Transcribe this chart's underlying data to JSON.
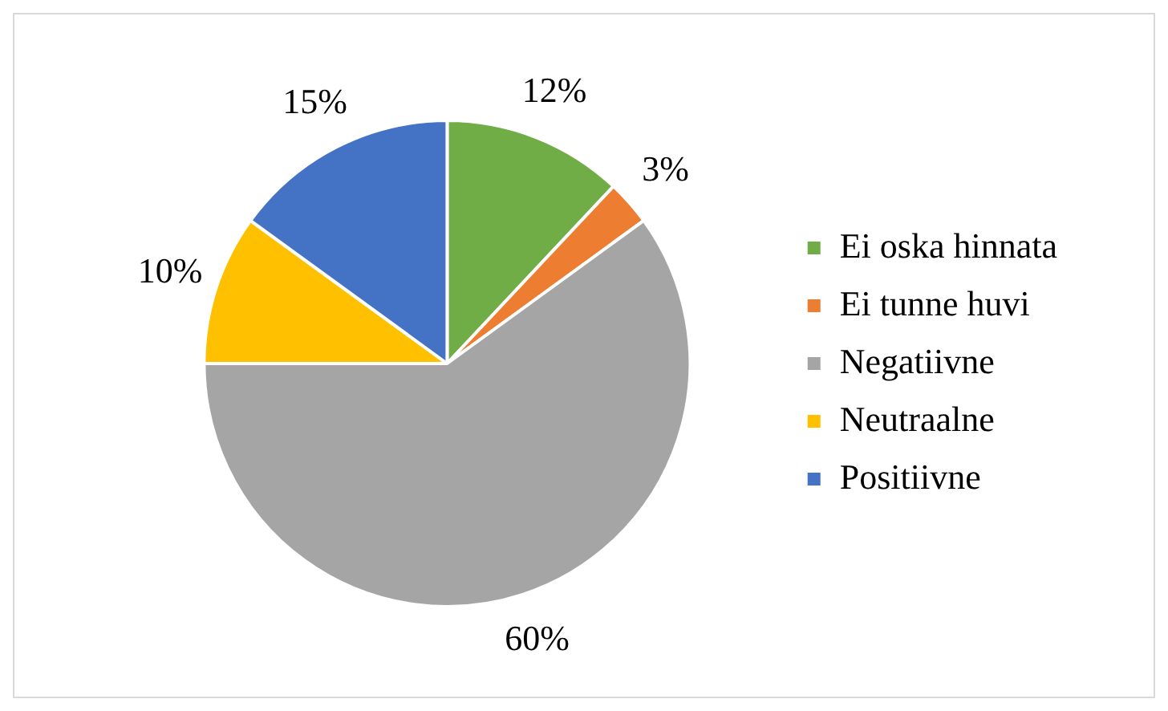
{
  "chart_data": {
    "type": "pie",
    "categories": [
      "Ei oska hinnata",
      "Ei tunne huvi",
      "Negatiivne",
      "Neutraalne",
      "Positiivne"
    ],
    "values": [
      12,
      3,
      60,
      10,
      15
    ],
    "value_labels": [
      "12%",
      "3%",
      "60%",
      "10%",
      "15%"
    ],
    "colors": [
      "#70ad47",
      "#ed7d31",
      "#a5a5a5",
      "#ffc000",
      "#4472c4"
    ],
    "legend": "right"
  }
}
